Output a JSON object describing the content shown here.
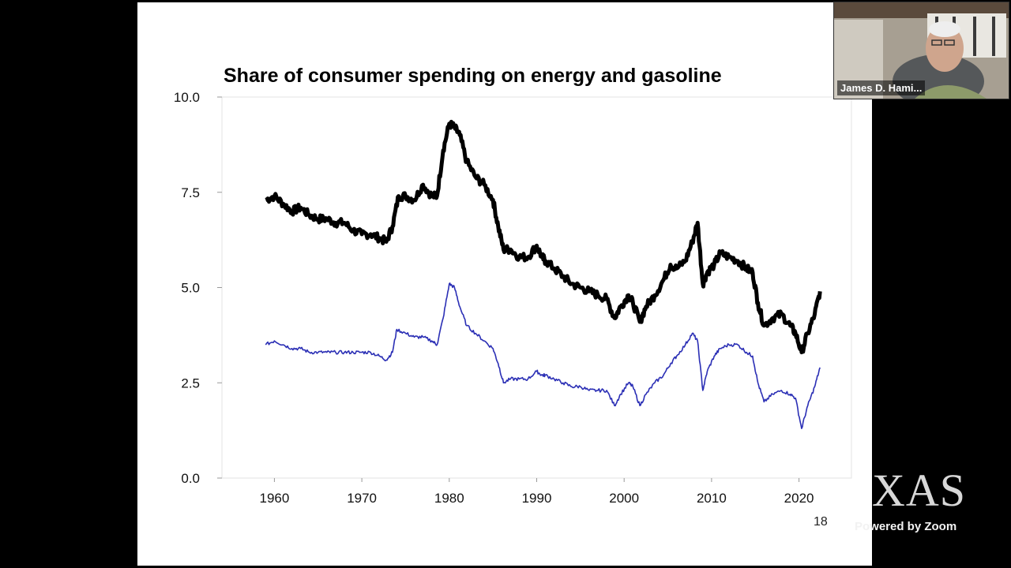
{
  "slide": {
    "number": "18"
  },
  "zoom": {
    "participant_name": "James D. Hami...",
    "watermark_text": "XAS",
    "powered_by": "Powered by Zoom"
  },
  "chart_data": {
    "type": "line",
    "title": "Share of consumer spending on energy and gasoline",
    "xlabel": "",
    "ylabel": "",
    "xlim": [
      1954,
      2026
    ],
    "ylim": [
      0,
      10
    ],
    "x_ticks": [
      "1960",
      "1970",
      "1980",
      "1990",
      "2000",
      "2010",
      "2020"
    ],
    "y_ticks": [
      "0.0",
      "2.5",
      "5.0",
      "7.5",
      "10.0"
    ],
    "grid": false,
    "legend": "none",
    "series": [
      {
        "color": "#000000",
        "x": [
          1959,
          1960,
          1961,
          1962,
          1963,
          1964,
          1965,
          1966,
          1967,
          1968,
          1969,
          1970,
          1971,
          1972,
          1972.8,
          1973.5,
          1974.2,
          1975,
          1976,
          1977,
          1978,
          1978.6,
          1979.3,
          1980,
          1980.6,
          1981.2,
          1982,
          1983,
          1984,
          1985,
          1985.6,
          1986.2,
          1987,
          1988,
          1989,
          1990,
          1990.6,
          1991,
          1992,
          1993,
          1994,
          1995,
          1996,
          1997,
          1998,
          1998.9,
          1999.6,
          2000.5,
          2001,
          2001.8,
          2002.5,
          2003.5,
          2004.5,
          2005.3,
          2006,
          2007,
          2007.8,
          2008.4,
          2009,
          2009.5,
          2010.3,
          2011,
          2012,
          2013,
          2014,
          2014.7,
          2015.3,
          2016,
          2017,
          2018,
          2019,
          2019.6,
          2020.3,
          2021,
          2021.8,
          2022.4
        ],
        "values": [
          7.3,
          7.4,
          7.2,
          7.0,
          7.1,
          6.9,
          6.8,
          6.8,
          6.7,
          6.7,
          6.5,
          6.4,
          6.4,
          6.3,
          6.2,
          6.6,
          7.4,
          7.4,
          7.3,
          7.7,
          7.4,
          7.4,
          8.6,
          9.3,
          9.2,
          9.0,
          8.3,
          7.9,
          7.7,
          7.3,
          6.6,
          6.0,
          6.0,
          5.8,
          5.8,
          6.1,
          5.8,
          5.7,
          5.5,
          5.3,
          5.1,
          5.0,
          4.9,
          4.8,
          4.7,
          4.2,
          4.5,
          4.8,
          4.6,
          4.1,
          4.5,
          4.8,
          5.2,
          5.6,
          5.5,
          5.7,
          6.2,
          6.7,
          5.1,
          5.4,
          5.6,
          5.9,
          5.8,
          5.7,
          5.5,
          5.4,
          4.6,
          4.0,
          4.2,
          4.3,
          4.0,
          3.8,
          3.3,
          3.8,
          4.3,
          4.9
        ]
      },
      {
        "color": "#2b2fb5",
        "x": [
          1959,
          1960,
          1961,
          1962,
          1963,
          1964,
          1965,
          1966,
          1967,
          1968,
          1969,
          1970,
          1971,
          1972,
          1972.8,
          1973.5,
          1974,
          1975,
          1976,
          1977,
          1978,
          1978.6,
          1979.3,
          1980,
          1980.6,
          1981.2,
          1982,
          1983,
          1984,
          1985,
          1985.6,
          1986.2,
          1987,
          1988,
          1989,
          1990,
          1990.6,
          1991,
          1992,
          1993,
          1994,
          1995,
          1996,
          1997,
          1998,
          1998.9,
          1999.6,
          2000.5,
          2001,
          2001.8,
          2002.5,
          2003.5,
          2004.5,
          2005.3,
          2006,
          2007,
          2007.8,
          2008.4,
          2009,
          2009.5,
          2010.3,
          2011,
          2012,
          2013,
          2014,
          2014.7,
          2015.3,
          2016,
          2017,
          2018,
          2019,
          2019.6,
          2020.3,
          2021,
          2021.8,
          2022.4
        ],
        "values": [
          3.5,
          3.6,
          3.5,
          3.4,
          3.4,
          3.3,
          3.3,
          3.3,
          3.3,
          3.3,
          3.3,
          3.3,
          3.3,
          3.2,
          3.1,
          3.3,
          3.9,
          3.8,
          3.7,
          3.7,
          3.6,
          3.5,
          4.2,
          5.1,
          5.0,
          4.5,
          4.0,
          3.8,
          3.6,
          3.4,
          3.0,
          2.5,
          2.6,
          2.6,
          2.6,
          2.8,
          2.7,
          2.7,
          2.6,
          2.5,
          2.4,
          2.4,
          2.3,
          2.3,
          2.3,
          1.9,
          2.2,
          2.5,
          2.4,
          1.9,
          2.2,
          2.5,
          2.7,
          3.0,
          3.2,
          3.5,
          3.8,
          3.6,
          2.3,
          2.8,
          3.2,
          3.4,
          3.5,
          3.5,
          3.3,
          3.2,
          2.5,
          2.0,
          2.2,
          2.3,
          2.2,
          2.1,
          1.3,
          1.9,
          2.4,
          2.9
        ]
      }
    ]
  }
}
